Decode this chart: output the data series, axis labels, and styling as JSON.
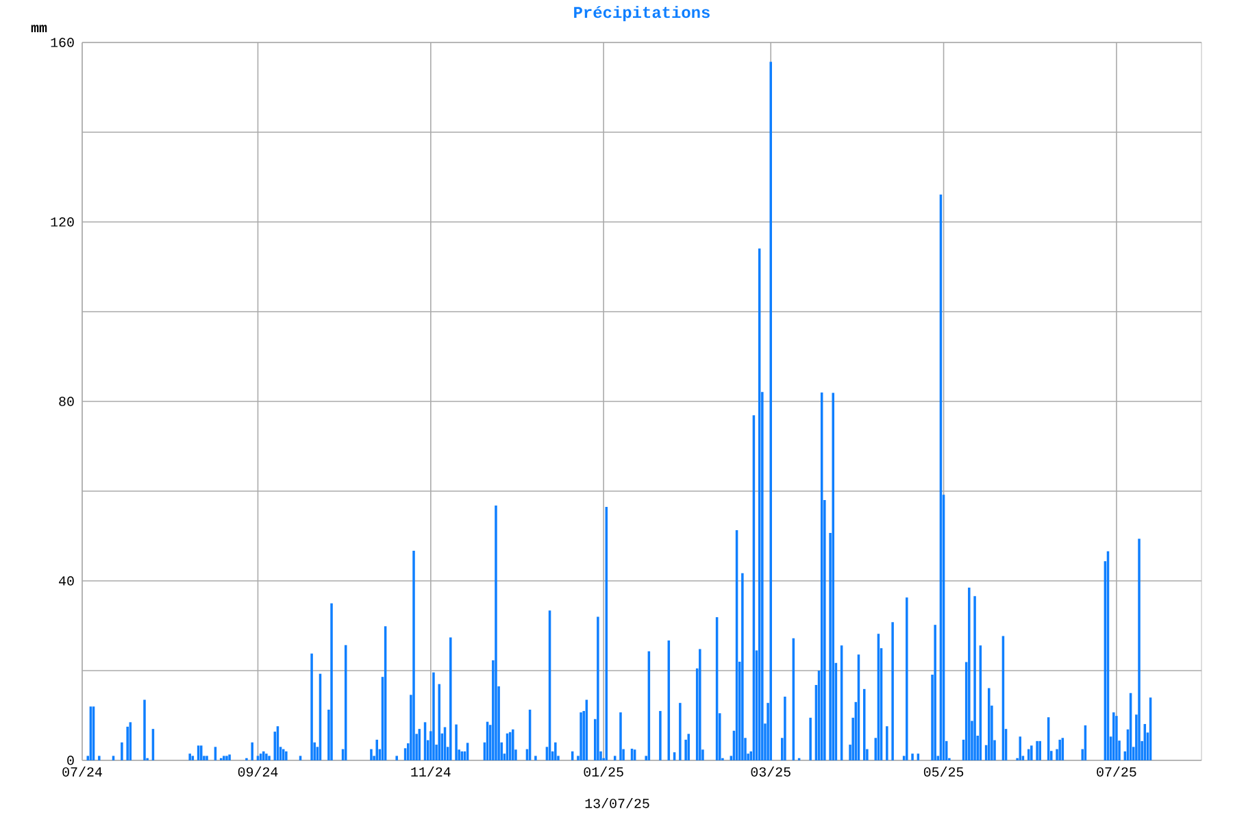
{
  "chart_data": {
    "type": "bar",
    "title": "Précipitations",
    "ylabel": "mm",
    "color": "#0f7fff",
    "grid": true,
    "annotations": [
      "13/07/25"
    ],
    "xlim": [
      "2024-07-01",
      "2025-07-31"
    ],
    "ylim": [
      0,
      160
    ],
    "xticks": [
      {
        "value": "2024-07-01",
        "label": "07/24"
      },
      {
        "value": "2024-09-01",
        "label": "09/24"
      },
      {
        "value": "2024-11-01",
        "label": "11/24"
      },
      {
        "value": "2025-01-01",
        "label": "01/25"
      },
      {
        "value": "2025-03-01",
        "label": "03/25"
      },
      {
        "value": "2025-05-01",
        "label": "05/25"
      },
      {
        "value": "2025-07-01",
        "label": "07/25"
      }
    ],
    "yticks": [
      0,
      {
        "value": 20,
        "label": null
      },
      40,
      {
        "value": 60,
        "label": null
      },
      80,
      {
        "value": 100,
        "label": null
      },
      120,
      {
        "value": 140,
        "label": null
      },
      160
    ],
    "x": [
      "2024-07-03",
      "2024-07-04",
      "2024-07-05",
      "2024-07-07",
      "2024-07-12",
      "2024-07-15",
      "2024-07-17",
      "2024-07-18",
      "2024-07-23",
      "2024-07-24",
      "2024-07-26",
      "2024-08-08",
      "2024-08-09",
      "2024-08-11",
      "2024-08-12",
      "2024-08-13",
      "2024-08-14",
      "2024-08-17",
      "2024-08-19",
      "2024-08-20",
      "2024-08-21",
      "2024-08-22",
      "2024-08-28",
      "2024-08-30",
      "2024-09-01",
      "2024-09-02",
      "2024-09-03",
      "2024-09-04",
      "2024-09-05",
      "2024-09-07",
      "2024-09-08",
      "2024-09-09",
      "2024-09-10",
      "2024-09-11",
      "2024-09-16",
      "2024-09-20",
      "2024-09-21",
      "2024-09-22",
      "2024-09-23",
      "2024-09-26",
      "2024-09-27",
      "2024-10-01",
      "2024-10-02",
      "2024-10-11",
      "2024-10-12",
      "2024-10-13",
      "2024-10-14",
      "2024-10-15",
      "2024-10-16",
      "2024-10-20",
      "2024-10-23",
      "2024-10-24",
      "2024-10-25",
      "2024-10-26",
      "2024-10-27",
      "2024-10-28",
      "2024-10-30",
      "2024-10-31",
      "2024-11-01",
      "2024-11-02",
      "2024-11-03",
      "2024-11-04",
      "2024-11-05",
      "2024-11-06",
      "2024-11-07",
      "2024-11-08",
      "2024-11-10",
      "2024-11-11",
      "2024-11-12",
      "2024-11-13",
      "2024-11-14",
      "2024-11-20",
      "2024-11-21",
      "2024-11-22",
      "2024-11-23",
      "2024-11-24",
      "2024-11-25",
      "2024-11-26",
      "2024-11-27",
      "2024-11-28",
      "2024-11-29",
      "2024-11-30",
      "2024-12-01",
      "2024-12-05",
      "2024-12-06",
      "2024-12-08",
      "2024-12-12",
      "2024-12-13",
      "2024-12-14",
      "2024-12-15",
      "2024-12-16",
      "2024-12-21",
      "2024-12-23",
      "2024-12-24",
      "2024-12-25",
      "2024-12-26",
      "2024-12-29",
      "2024-12-30",
      "2024-12-31",
      "2025-01-01",
      "2025-01-02",
      "2025-01-05",
      "2025-01-07",
      "2025-01-08",
      "2025-01-11",
      "2025-01-12",
      "2025-01-16",
      "2025-01-17",
      "2025-01-21",
      "2025-01-24",
      "2025-01-26",
      "2025-01-28",
      "2025-01-30",
      "2025-01-31",
      "2025-02-03",
      "2025-02-04",
      "2025-02-05",
      "2025-02-10",
      "2025-02-11",
      "2025-02-12",
      "2025-02-15",
      "2025-02-16",
      "2025-02-17",
      "2025-02-18",
      "2025-02-19",
      "2025-02-20",
      "2025-02-21",
      "2025-02-22",
      "2025-02-23",
      "2025-02-24",
      "2025-02-25",
      "2025-02-26",
      "2025-02-27",
      "2025-02-28",
      "2025-03-01",
      "2025-03-05",
      "2025-03-06",
      "2025-03-09",
      "2025-03-11",
      "2025-03-15",
      "2025-03-17",
      "2025-03-18",
      "2025-03-19",
      "2025-03-20",
      "2025-03-22",
      "2025-03-23",
      "2025-03-24",
      "2025-03-26",
      "2025-03-29",
      "2025-03-30",
      "2025-03-31",
      "2025-04-01",
      "2025-04-03",
      "2025-04-04",
      "2025-04-07",
      "2025-04-08",
      "2025-04-09",
      "2025-04-11",
      "2025-04-13",
      "2025-04-17",
      "2025-04-18",
      "2025-04-20",
      "2025-04-22",
      "2025-04-27",
      "2025-04-28",
      "2025-04-29",
      "2025-04-30",
      "2025-05-01",
      "2025-05-02",
      "2025-05-03",
      "2025-05-08",
      "2025-05-09",
      "2025-05-10",
      "2025-05-11",
      "2025-05-12",
      "2025-05-13",
      "2025-05-14",
      "2025-05-16",
      "2025-05-17",
      "2025-05-18",
      "2025-05-19",
      "2025-05-22",
      "2025-05-23",
      "2025-05-27",
      "2025-05-28",
      "2025-05-29",
      "2025-05-31",
      "2025-06-01",
      "2025-06-03",
      "2025-06-04",
      "2025-06-07",
      "2025-06-08",
      "2025-06-10",
      "2025-06-11",
      "2025-06-12",
      "2025-06-19",
      "2025-06-20",
      "2025-06-27",
      "2025-06-28",
      "2025-06-29",
      "2025-06-30",
      "2025-07-01",
      "2025-07-02",
      "2025-07-04",
      "2025-07-05",
      "2025-07-06",
      "2025-07-07",
      "2025-07-08",
      "2025-07-09",
      "2025-07-10",
      "2025-07-11",
      "2025-07-12",
      "2025-07-13"
    ],
    "values": [
      1,
      12,
      12,
      1,
      1,
      4,
      7.5,
      8.5,
      13.5,
      0.5,
      7,
      1.5,
      1,
      3.3,
      3.3,
      1,
      1,
      3,
      0.5,
      1,
      1,
      1.3,
      0.5,
      4,
      1,
      1.5,
      2,
      1.5,
      1,
      6.4,
      7.6,
      3,
      2.5,
      2,
      1,
      23.8,
      4,
      3,
      19.3,
      11.3,
      35,
      2.5,
      25.7,
      2.5,
      1,
      4.6,
      2.5,
      18.6,
      29.9,
      1,
      2.7,
      3.8,
      14.6,
      46.7,
      5.9,
      7,
      8.5,
      4.5,
      6.5,
      19.6,
      3.5,
      17,
      6,
      7.4,
      3,
      27.4,
      8,
      2.4,
      2,
      2,
      3.9,
      4,
      8.6,
      7.9,
      22.3,
      56.8,
      16.5,
      4,
      1.5,
      6,
      6.3,
      6.9,
      2.4,
      2.5,
      11.3,
      1,
      3,
      33.4,
      2,
      4,
      1,
      2,
      1,
      10.7,
      11,
      13.5,
      9.2,
      32,
      2,
      0.5,
      56.5,
      1,
      10.7,
      2.5,
      2.6,
      2.4,
      1,
      24.3,
      11,
      26.7,
      1.8,
      12.8,
      4.6,
      5.9,
      20.5,
      24.8,
      2.4,
      31.9,
      10.5,
      0.5,
      1,
      6.6,
      51.3,
      22,
      41.7,
      5,
      1.5,
      2,
      76.9,
      24.5,
      114.1,
      82.1,
      8.2,
      12.8,
      155.7,
      5,
      14.2,
      27.2,
      0.5,
      9.5,
      16.8,
      20,
      82,
      58,
      50.7,
      81.9,
      21.7,
      25.6,
      3.5,
      9.5,
      13,
      23.6,
      15.9,
      2.5,
      5,
      28.2,
      25,
      7.6,
      30.8,
      1,
      36.3,
      1.5,
      1.5,
      19.1,
      30.2,
      1,
      126.1,
      59.2,
      4.3,
      0.5,
      4.6,
      21.9,
      38.5,
      8.8,
      36.6,
      5.5,
      25.6,
      3.4,
      16.1,
      12.2,
      4.5,
      27.7,
      7,
      0.5,
      5.3,
      1,
      2.5,
      3.3,
      4.3,
      4.3,
      9.6,
      2.1,
      2.5,
      4.6,
      5,
      2.5,
      7.8,
      44.4,
      46.6,
      5.3,
      10.7,
      9.9,
      4.4,
      2,
      6.9,
      15,
      3,
      10.2,
      49.4,
      4.3,
      8.1,
      6.2,
      14
    ]
  }
}
